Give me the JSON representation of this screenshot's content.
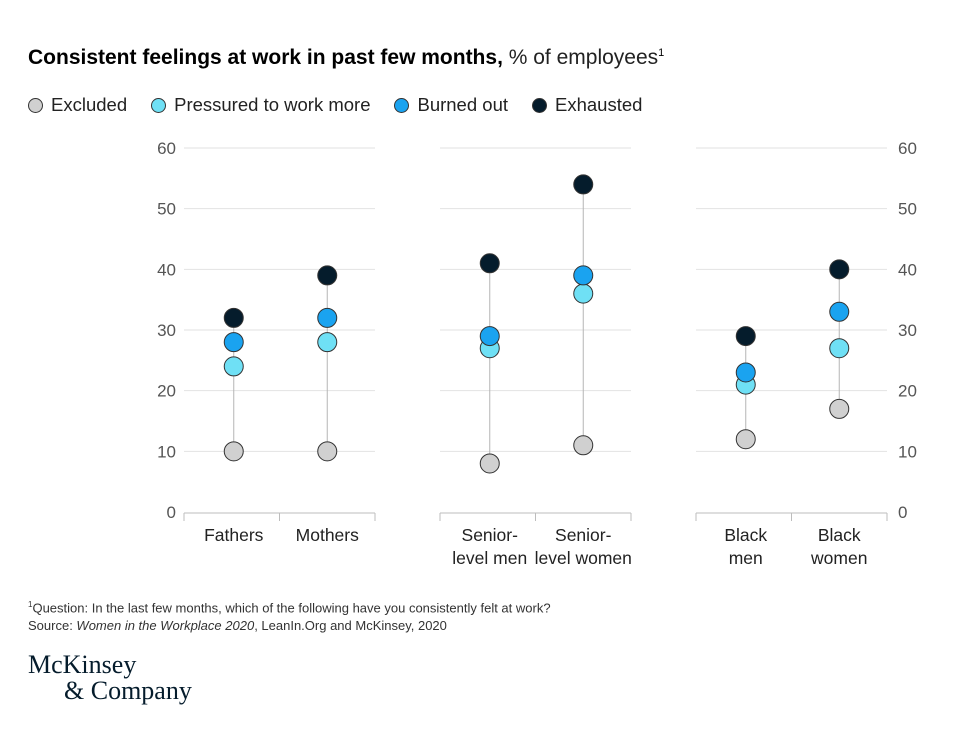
{
  "title": {
    "main": "Consistent feelings at work in past few months,",
    "sub": "% of employees",
    "sup": "1"
  },
  "legend": [
    {
      "label": "Excluded",
      "color": "#d0d0d0"
    },
    {
      "label": "Pressured to work more",
      "color": "#6fe0f5"
    },
    {
      "label": "Burned out",
      "color": "#1aa3f0"
    },
    {
      "label": "Exhausted",
      "color": "#051c2c"
    }
  ],
  "chart_data": {
    "type": "scatter",
    "title": "Consistent feelings at work in past few months, % of employees",
    "ylim": [
      0,
      60
    ],
    "yticks": [
      0,
      10,
      20,
      30,
      40,
      50,
      60
    ],
    "grid": true,
    "legend_position": "top-left",
    "groups": [
      {
        "categories": [
          [
            "Fathers"
          ],
          [
            "Mothers"
          ]
        ]
      },
      {
        "categories": [
          [
            "Senior-",
            "level men"
          ],
          [
            "Senior-",
            "level women"
          ]
        ]
      },
      {
        "categories": [
          [
            "Black",
            "men"
          ],
          [
            "Black",
            "women"
          ]
        ]
      }
    ],
    "series": [
      {
        "name": "Excluded",
        "color": "#d0d0d0",
        "values": [
          10,
          10,
          8,
          11,
          12,
          17
        ]
      },
      {
        "name": "Pressured to work more",
        "color": "#6fe0f5",
        "values": [
          24,
          28,
          27,
          36,
          21,
          27
        ]
      },
      {
        "name": "Burned out",
        "color": "#1aa3f0",
        "values": [
          28,
          32,
          29,
          39,
          23,
          33
        ]
      },
      {
        "name": "Exhausted",
        "color": "#051c2c",
        "values": [
          32,
          39,
          41,
          54,
          29,
          40
        ]
      }
    ]
  },
  "footnote": {
    "sup": "1",
    "question": "Question: In the last few months, which of the following have you consistently felt at work?",
    "source_prefix": "Source: ",
    "source_title": "Women in the Workplace 2020",
    "source_suffix": ", LeanIn.Org and McKinsey, 2020"
  },
  "logo": {
    "line1": "McKinsey",
    "line2": "& Company"
  }
}
